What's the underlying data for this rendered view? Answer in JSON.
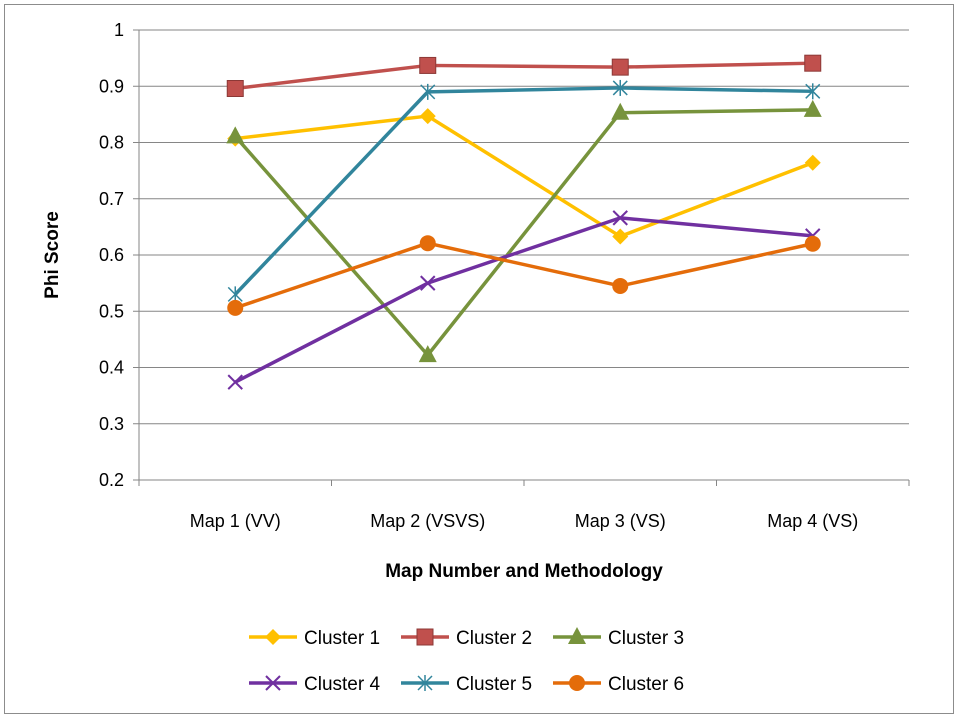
{
  "chart_data": {
    "type": "line",
    "title": "",
    "xlabel": "Map Number and Methodology",
    "ylabel": "Phi Score",
    "categories": [
      "Map 1 (VV)",
      "Map 2 (VSVS)",
      "Map 3 (VS)",
      "Map 4 (VS)"
    ],
    "ylim": [
      0.2,
      1
    ],
    "yticks": [
      0.2,
      0.3,
      0.4,
      0.5,
      0.6,
      0.7,
      0.8,
      0.9,
      1
    ],
    "ytick_labels": [
      "0.2",
      "0.3",
      "0.4",
      "0.5",
      "0.6",
      "0.7",
      "0.8",
      "0.9",
      "1"
    ],
    "grid": true,
    "legend_position": "bottom",
    "series": [
      {
        "name": "Cluster 1",
        "color": "#FFC000",
        "marker": "diamond",
        "values": [
          0.807,
          0.847,
          0.633,
          0.764
        ]
      },
      {
        "name": "Cluster 2",
        "color": "#C0504D",
        "marker": "square",
        "values": [
          0.896,
          0.937,
          0.934,
          0.941
        ]
      },
      {
        "name": "Cluster 3",
        "color": "#77933C",
        "marker": "triangle",
        "values": [
          0.811,
          0.422,
          0.853,
          0.858
        ]
      },
      {
        "name": "Cluster 4",
        "color": "#7030A0",
        "marker": "x",
        "values": [
          0.374,
          0.55,
          0.666,
          0.634
        ]
      },
      {
        "name": "Cluster 5",
        "color": "#31859C",
        "marker": "asterisk",
        "values": [
          0.53,
          0.89,
          0.897,
          0.891
        ]
      },
      {
        "name": "Cluster 6",
        "color": "#E46C0A",
        "marker": "circle",
        "values": [
          0.506,
          0.621,
          0.545,
          0.62
        ]
      }
    ]
  }
}
